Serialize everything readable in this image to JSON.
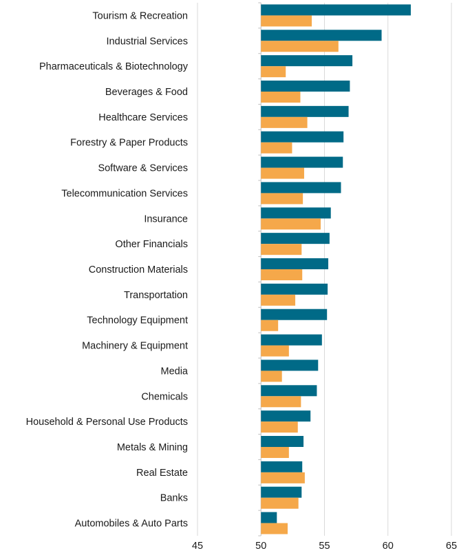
{
  "chart_data": {
    "type": "bar",
    "orientation": "horizontal",
    "categories": [
      "Tourism & Recreation",
      "Industrial Services",
      "Pharmaceuticals & Biotechnology",
      "Beverages & Food",
      "Healthcare Services",
      "Forestry & Paper Products",
      "Software & Services",
      "Telecommunication Services",
      "Insurance",
      "Other Financials",
      "Construction Materials",
      "Transportation",
      "Technology Equipment",
      "Machinery & Equipment",
      "Media",
      "Chemicals",
      "Household & Personal Use Products",
      "Metals & Mining",
      "Real Estate",
      "Banks",
      "Automobiles & Auto Parts"
    ],
    "series": [
      {
        "color": "#006a87",
        "values": [
          61.8,
          59.5,
          57.2,
          57.0,
          56.9,
          56.5,
          56.45,
          56.3,
          55.5,
          55.4,
          55.3,
          55.25,
          55.2,
          54.8,
          54.5,
          54.4,
          53.9,
          53.35,
          53.25,
          53.2,
          51.25
        ]
      },
      {
        "color": "#f5a84a",
        "values": [
          54.0,
          56.1,
          51.95,
          53.1,
          53.65,
          52.45,
          53.4,
          53.3,
          54.7,
          53.2,
          53.25,
          52.7,
          51.35,
          52.2,
          51.65,
          53.15,
          52.9,
          52.2,
          53.45,
          52.95,
          52.1
        ]
      }
    ],
    "xlim": [
      45,
      65
    ],
    "xticks": [
      "45",
      "50",
      "55",
      "60",
      "65"
    ],
    "baseline": 50,
    "grid": true,
    "legend": "none"
  }
}
